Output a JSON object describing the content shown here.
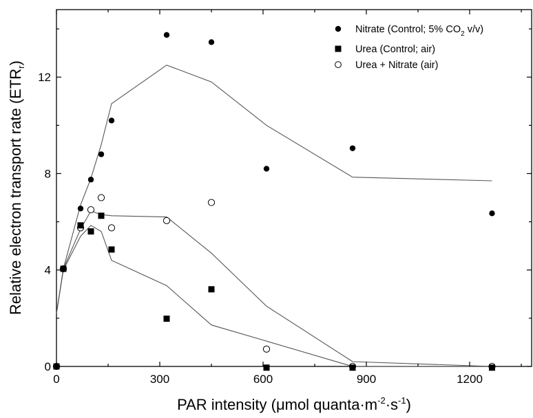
{
  "chart_data": {
    "type": "scatter",
    "xlabel": "PAR intensity (μmol quanta·m-2·s-1)",
    "xlabel_parts": {
      "main": "PAR intensity (",
      "mu": "μ",
      "mol": "mol quanta·m",
      "sup1": "-2",
      "mid": "·s",
      "sup2": "-1",
      "end": ")"
    },
    "ylabel": "Relative electron transport rate (ETRr)",
    "ylabel_parts": {
      "main": "Relative electron transport rate (ETR",
      "sub": "r",
      "end": ")"
    },
    "xlim": [
      0,
      1380
    ],
    "ylim": [
      0,
      14.8
    ],
    "xticks": [
      0,
      300,
      600,
      900,
      1200
    ],
    "yticks": [
      0,
      4,
      8,
      12
    ],
    "grid": false,
    "legend_position": "top-right",
    "series": [
      {
        "name": "Nitrate (Control; 5% CO2 v/v)",
        "legend_parts": {
          "main": "Nitrate (Control; 5% CO",
          "sub": "2",
          "end": " v/v)"
        },
        "marker": "filled-circle",
        "points": [
          [
            20,
            4.05
          ],
          [
            70,
            6.55
          ],
          [
            100,
            7.75
          ],
          [
            130,
            8.8
          ],
          [
            160,
            10.2
          ],
          [
            320,
            13.75
          ],
          [
            450,
            13.45
          ],
          [
            610,
            8.2
          ],
          [
            860,
            9.05
          ],
          [
            1265,
            6.35
          ]
        ],
        "fit": [
          [
            0,
            2.2
          ],
          [
            20,
            4.05
          ],
          [
            70,
            6.7
          ],
          [
            100,
            7.8
          ],
          [
            130,
            9.2
          ],
          [
            160,
            10.9
          ],
          [
            320,
            12.5
          ],
          [
            450,
            11.8
          ],
          [
            610,
            10.0
          ],
          [
            860,
            7.85
          ],
          [
            1265,
            7.7
          ]
        ]
      },
      {
        "name": "Urea (Control; air)",
        "legend_parts": {
          "main": "Urea (Control; air)",
          "sub": "",
          "end": ""
        },
        "marker": "filled-square",
        "points": [
          [
            0,
            0
          ],
          [
            20,
            4.05
          ],
          [
            70,
            5.85
          ],
          [
            100,
            5.6
          ],
          [
            130,
            6.25
          ],
          [
            160,
            4.85
          ],
          [
            320,
            1.98
          ],
          [
            450,
            3.2
          ],
          [
            610,
            -0.05
          ],
          [
            860,
            -0.05
          ],
          [
            1265,
            -0.05
          ]
        ],
        "fit": [
          [
            0,
            2.2
          ],
          [
            20,
            4.0
          ],
          [
            70,
            5.4
          ],
          [
            100,
            5.85
          ],
          [
            130,
            5.6
          ],
          [
            160,
            4.4
          ],
          [
            320,
            3.35
          ],
          [
            450,
            1.72
          ],
          [
            610,
            1.05
          ],
          [
            860,
            0.0
          ],
          [
            1265,
            0.0
          ]
        ]
      },
      {
        "name": "Urea + Nitrate (air)",
        "legend_parts": {
          "main": "Urea + Nitrate (air)",
          "sub": "",
          "end": ""
        },
        "marker": "open-circle",
        "points": [
          [
            0,
            0
          ],
          [
            20,
            4.05
          ],
          [
            70,
            5.75
          ],
          [
            100,
            6.5
          ],
          [
            130,
            7.0
          ],
          [
            160,
            5.75
          ],
          [
            320,
            6.05
          ],
          [
            450,
            6.8
          ],
          [
            610,
            0.72
          ],
          [
            860,
            0.0
          ],
          [
            1265,
            0.0
          ]
        ],
        "fit": [
          [
            0,
            2.2
          ],
          [
            20,
            4.05
          ],
          [
            70,
            5.7
          ],
          [
            100,
            6.45
          ],
          [
            130,
            6.3
          ],
          [
            160,
            6.25
          ],
          [
            320,
            6.2
          ],
          [
            450,
            4.7
          ],
          [
            610,
            2.5
          ],
          [
            860,
            0.2
          ],
          [
            1265,
            0.0
          ]
        ]
      }
    ]
  }
}
